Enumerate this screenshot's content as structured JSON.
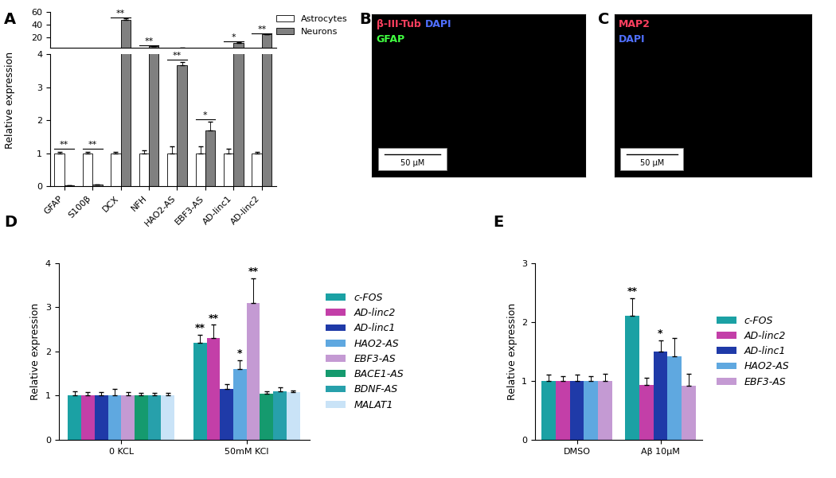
{
  "chart_data": [
    {
      "panel": "A",
      "type": "bar",
      "ylabel": "Relative expression",
      "categories": [
        "GFAP",
        "S100β",
        "DCX",
        "NFH",
        "HAO2-AS",
        "EBF3-AS",
        "AD-linc1",
        "AD-linc2"
      ],
      "series": [
        {
          "name": "Astrocytes",
          "color": "#ffffff",
          "values": [
            1,
            1,
            1,
            1,
            1,
            1,
            1,
            1
          ],
          "errors": [
            0.05,
            0.05,
            0.05,
            0.1,
            0.2,
            0.2,
            0.15,
            0.05
          ]
        },
        {
          "name": "Neurons",
          "color": "#808080",
          "values": [
            0.03,
            0.05,
            48,
            6,
            3.65,
            1.7,
            11,
            25
          ],
          "errors": [
            0.01,
            0.01,
            1.5,
            0.2,
            0.1,
            0.25,
            2,
            0.5
          ]
        }
      ],
      "significance": [
        "**",
        "**",
        "**",
        "**",
        "**",
        "*",
        "*",
        "**"
      ],
      "segments": [
        {
          "ylim": [
            0,
            4
          ],
          "yticks": [
            0,
            1,
            2,
            3,
            4
          ]
        },
        {
          "ylim": [
            4,
            60
          ],
          "yticks": [
            20,
            40,
            60
          ]
        }
      ],
      "legend": "upper right"
    },
    {
      "panel": "D",
      "type": "bar",
      "ylabel": "Relative expression",
      "categories": [
        "0 KCL",
        "50mM KCl"
      ],
      "ylim": [
        0,
        4
      ],
      "yticks": [
        0,
        1,
        2,
        3,
        4
      ],
      "legend": "right",
      "series": [
        {
          "name": "c-FOS",
          "color": "#1ba1a4",
          "values": [
            1,
            2.2
          ],
          "errors": [
            0.1,
            0.17
          ],
          "significance": [
            null,
            "**"
          ]
        },
        {
          "name": "AD-linc2",
          "color": "#c33fa8",
          "values": [
            1,
            2.3
          ],
          "errors": [
            0.08,
            0.3
          ],
          "significance": [
            null,
            "**"
          ]
        },
        {
          "name": "AD-linc1",
          "color": "#1f3aa8",
          "values": [
            1,
            1.15
          ],
          "errors": [
            0.08,
            0.1
          ],
          "significance": [
            null,
            null
          ]
        },
        {
          "name": "HAO2-AS",
          "color": "#5fa8e0",
          "values": [
            1,
            1.6
          ],
          "errors": [
            0.15,
            0.2
          ],
          "significance": [
            null,
            "*"
          ]
        },
        {
          "name": "EBF3-AS",
          "color": "#c49ad3",
          "values": [
            1,
            3.1
          ],
          "errors": [
            0.08,
            0.55
          ],
          "significance": [
            null,
            "**"
          ]
        },
        {
          "name": "BACE1-AS",
          "color": "#159a6e",
          "values": [
            1,
            1.05
          ],
          "errors": [
            0.06,
            0.05
          ],
          "significance": [
            null,
            null
          ]
        },
        {
          "name": "BDNF-AS",
          "color": "#27a0ab",
          "values": [
            1,
            1.1
          ],
          "errors": [
            0.06,
            0.08
          ],
          "significance": [
            null,
            null
          ]
        },
        {
          "name": "MALAT1",
          "color": "#c9e3f7",
          "values": [
            1,
            1.07
          ],
          "errors": [
            0.06,
            0.05
          ],
          "significance": [
            null,
            null
          ]
        }
      ]
    },
    {
      "panel": "E",
      "type": "bar",
      "ylabel": "Relative expression",
      "categories": [
        "DMSO",
        "Aβ 10μM"
      ],
      "ylim": [
        0,
        3
      ],
      "yticks": [
        0,
        1,
        2,
        3
      ],
      "legend": "right",
      "series": [
        {
          "name": "c-FOS",
          "color": "#1ba1a4",
          "values": [
            1,
            2.1
          ],
          "errors": [
            0.1,
            0.3
          ],
          "significance": [
            null,
            "**"
          ]
        },
        {
          "name": "AD-linc2",
          "color": "#c33fa8",
          "values": [
            1,
            0.93
          ],
          "errors": [
            0.08,
            0.12
          ],
          "significance": [
            null,
            null
          ]
        },
        {
          "name": "AD-linc1",
          "color": "#1f3aa8",
          "values": [
            1,
            1.5
          ],
          "errors": [
            0.1,
            0.18
          ],
          "significance": [
            null,
            "*"
          ]
        },
        {
          "name": "HAO2-AS",
          "color": "#5fa8e0",
          "values": [
            1,
            1.42
          ],
          "errors": [
            0.08,
            0.3
          ],
          "significance": [
            null,
            null
          ]
        },
        {
          "name": "EBF3-AS",
          "color": "#c49ad3",
          "values": [
            1,
            0.92
          ],
          "errors": [
            0.12,
            0.2
          ],
          "significance": [
            null,
            null
          ]
        }
      ]
    }
  ],
  "images": [
    {
      "panel": "B",
      "channels": [
        [
          {
            "text": "β-III-Tub",
            "color": "#ff4060"
          },
          {
            "text": "DAPI",
            "color": "#5070ff"
          }
        ],
        [
          {
            "text": "GFAP",
            "color": "#40ff40"
          }
        ]
      ],
      "scale_bar": "50 μM"
    },
    {
      "panel": "C",
      "channels": [
        [
          {
            "text": "MAP2",
            "color": "#ff4060"
          }
        ],
        [
          {
            "text": "DAPI",
            "color": "#5070ff"
          }
        ]
      ],
      "scale_bar": "50 μM"
    }
  ]
}
